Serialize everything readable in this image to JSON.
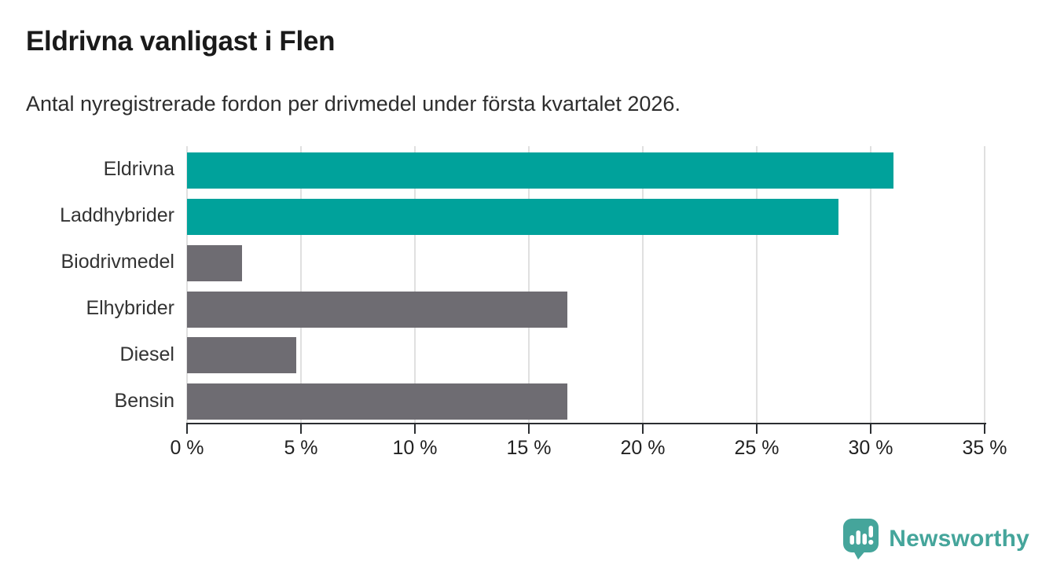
{
  "chart_data": {
    "type": "bar",
    "orientation": "horizontal",
    "title": "Eldrivna vanligast i Flen",
    "subtitle": "Antal nyregistrerade fordon per drivmedel under första kvartalet 2026.",
    "categories": [
      "Eldrivna",
      "Laddhybrider",
      "Biodrivmedel",
      "Elhybrider",
      "Diesel",
      "Bensin"
    ],
    "values": [
      31.0,
      28.6,
      2.4,
      16.7,
      4.8,
      16.7
    ],
    "unit": "%",
    "bar_colors": [
      "#00a29b",
      "#00a29b",
      "#6e6c72",
      "#6e6c72",
      "#6e6c72",
      "#6e6c72"
    ],
    "xlim": [
      0,
      35
    ],
    "x_ticks": [
      0,
      5,
      10,
      15,
      20,
      25,
      30,
      35
    ],
    "x_tick_suffix": " %",
    "grid": "vertical-gridlines",
    "legend": "none",
    "value_labels": "none"
  },
  "footer": {
    "brand": "Newsworthy"
  },
  "colors": {
    "highlight_teal": "#00a29b",
    "neutral_gray": "#6e6c72",
    "gridline": "#e0e0e0",
    "axis": "#2b2e31",
    "logo_teal": "#45a59b",
    "title_text": "#1a1a1a",
    "body_text": "#333333"
  }
}
